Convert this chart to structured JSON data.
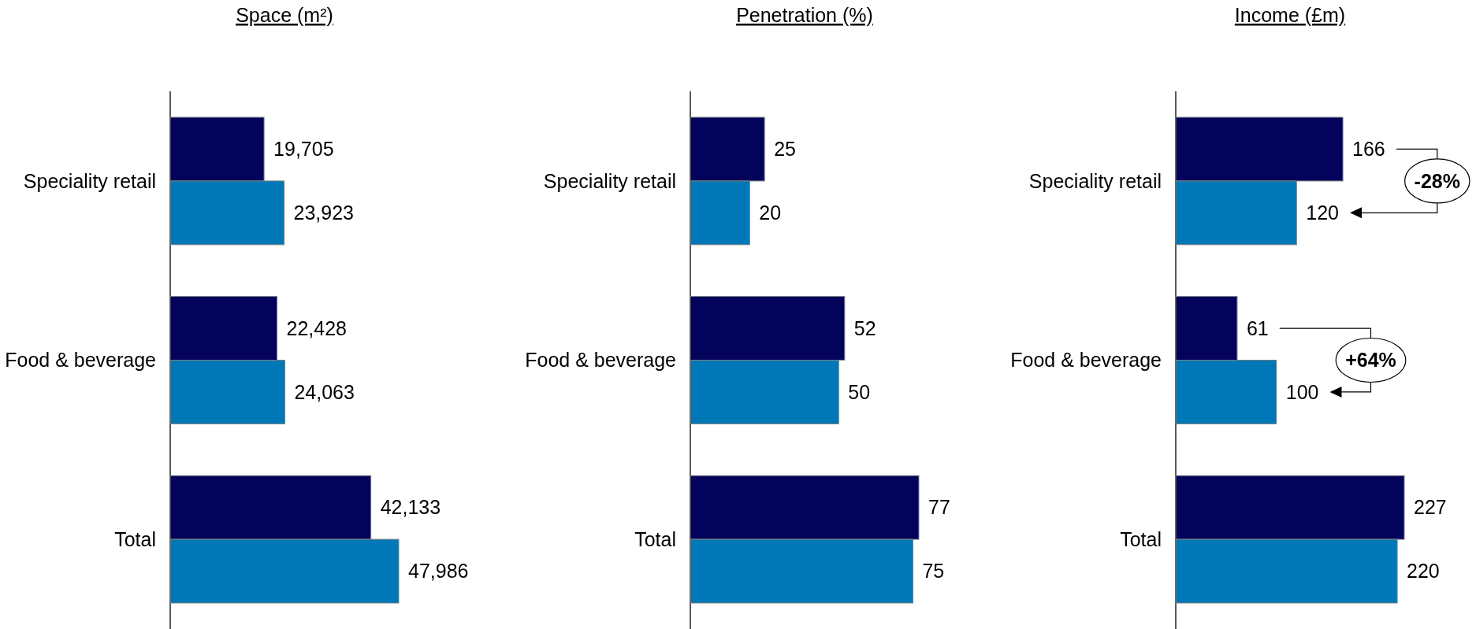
{
  "chart_data": [
    {
      "type": "bar",
      "orientation": "horizontal",
      "title": "Space (m²)",
      "categories": [
        "Speciality retail",
        "Food & beverage",
        "Total"
      ],
      "series": [
        {
          "color": "#03035c",
          "values": [
            19705,
            22428,
            42133
          ],
          "value_labels": [
            "19,705",
            "22,428",
            "42,133"
          ]
        },
        {
          "color": "#0077b6",
          "values": [
            23923,
            24063,
            47986
          ],
          "value_labels": [
            "23,923",
            "24,063",
            "47,986"
          ]
        }
      ],
      "tick_labels": "y"
    },
    {
      "type": "bar",
      "orientation": "horizontal",
      "title": "Penetration (%)",
      "categories": [
        "Speciality retail",
        "Food & beverage",
        "Total"
      ],
      "series": [
        {
          "color": "#03035c",
          "values": [
            25,
            52,
            77
          ]
        },
        {
          "color": "#0077b6",
          "values": [
            20,
            50,
            75
          ]
        }
      ],
      "data_labels": true,
      "tick_labels": "y"
    },
    {
      "type": "bar",
      "orientation": "horizontal",
      "title": "Income (£m)",
      "categories": [
        "Speciality retail",
        "Food & beverage",
        "Total"
      ],
      "series": [
        {
          "color": "#03035c",
          "values": [
            166,
            61,
            227
          ]
        },
        {
          "color": "#0077b6",
          "values": [
            120,
            100,
            220
          ]
        }
      ],
      "data_labels": true,
      "tick_labels": "y",
      "annotations": [
        "-28%",
        "+64%"
      ]
    }
  ]
}
